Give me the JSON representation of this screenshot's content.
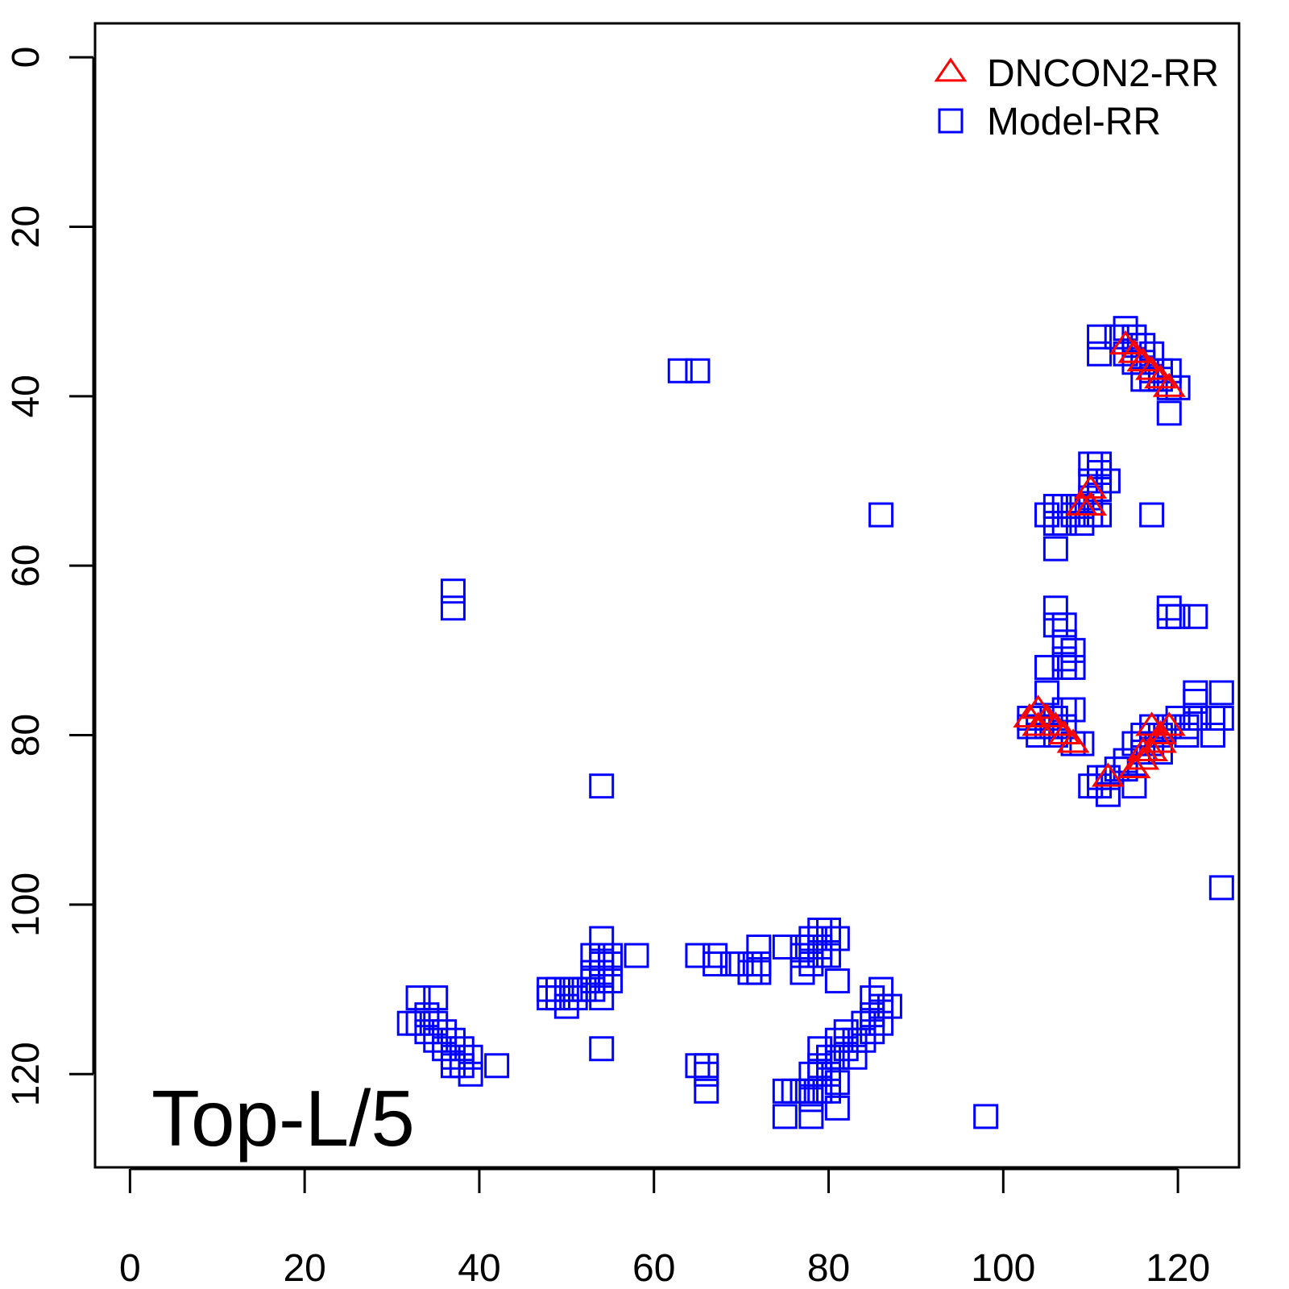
{
  "chart_data": {
    "type": "scatter",
    "title": "",
    "annotation": "Top-L/5",
    "xlabel": "",
    "ylabel": "",
    "xlim": [
      -4,
      127
    ],
    "ylim": [
      -4,
      131
    ],
    "y_reversed": true,
    "grid": false,
    "x_ticks": [
      0,
      20,
      40,
      60,
      80,
      100,
      120
    ],
    "y_ticks": [
      0,
      20,
      40,
      60,
      80,
      100,
      120
    ],
    "legend_position": "top-right",
    "series": [
      {
        "name": "DNCON2-RR",
        "marker": "triangle",
        "color": "#ff0000",
        "points": [
          [
            114,
            34
          ],
          [
            115,
            35
          ],
          [
            116,
            36
          ],
          [
            117,
            37
          ],
          [
            118,
            38
          ],
          [
            119,
            39
          ],
          [
            110,
            51
          ],
          [
            109,
            53
          ],
          [
            110,
            53
          ],
          [
            103,
            78
          ],
          [
            104,
            77
          ],
          [
            104,
            79
          ],
          [
            105,
            78
          ],
          [
            106,
            79
          ],
          [
            107,
            80
          ],
          [
            108,
            81
          ],
          [
            112,
            85
          ],
          [
            115,
            84
          ],
          [
            116,
            83
          ],
          [
            116,
            82
          ],
          [
            117,
            82
          ],
          [
            117,
            79
          ],
          [
            118,
            81
          ],
          [
            118,
            80
          ],
          [
            119,
            79
          ]
        ]
      },
      {
        "name": "Model-RR",
        "marker": "square",
        "color": "#0000ff",
        "points": [
          [
            114,
            32
          ],
          [
            113,
            33
          ],
          [
            115,
            33
          ],
          [
            111,
            33
          ],
          [
            111,
            35
          ],
          [
            114,
            35
          ],
          [
            115,
            34
          ],
          [
            116,
            34
          ],
          [
            116,
            36
          ],
          [
            117,
            35
          ],
          [
            117,
            37
          ],
          [
            115,
            36
          ],
          [
            116,
            38
          ],
          [
            117,
            38
          ],
          [
            118,
            37
          ],
          [
            118,
            38
          ],
          [
            119,
            37
          ],
          [
            119,
            39
          ],
          [
            120,
            39
          ],
          [
            119,
            42
          ],
          [
            63,
            37
          ],
          [
            65,
            37
          ],
          [
            110,
            48
          ],
          [
            111,
            48
          ],
          [
            112,
            50
          ],
          [
            110,
            50
          ],
          [
            111,
            49
          ],
          [
            111,
            51
          ],
          [
            110,
            52
          ],
          [
            109,
            53
          ],
          [
            110,
            54
          ],
          [
            111,
            54
          ],
          [
            109,
            55
          ],
          [
            108,
            53
          ],
          [
            107,
            53
          ],
          [
            106,
            53
          ],
          [
            105,
            54
          ],
          [
            106,
            55
          ],
          [
            107,
            55
          ],
          [
            108,
            54
          ],
          [
            106,
            58
          ],
          [
            117,
            54
          ],
          [
            86,
            54
          ],
          [
            37,
            63
          ],
          [
            37,
            65
          ],
          [
            106,
            65
          ],
          [
            106,
            67
          ],
          [
            107,
            67
          ],
          [
            107,
            69
          ],
          [
            107,
            71
          ],
          [
            107,
            72
          ],
          [
            108,
            72
          ],
          [
            108,
            70
          ],
          [
            105,
            72
          ],
          [
            108,
            77
          ],
          [
            107,
            77
          ],
          [
            105,
            75
          ],
          [
            119,
            65
          ],
          [
            119,
            66
          ],
          [
            120,
            66
          ],
          [
            122,
            66
          ],
          [
            103,
            79
          ],
          [
            103,
            78
          ],
          [
            104,
            80
          ],
          [
            104,
            78
          ],
          [
            105,
            79
          ],
          [
            106,
            78
          ],
          [
            106,
            80
          ],
          [
            107,
            79
          ],
          [
            108,
            81
          ],
          [
            109,
            81
          ],
          [
            110,
            86
          ],
          [
            111,
            85
          ],
          [
            111,
            86
          ],
          [
            112,
            87
          ],
          [
            112,
            85
          ],
          [
            113,
            84
          ],
          [
            114,
            83
          ],
          [
            114,
            84
          ],
          [
            115,
            86
          ],
          [
            115,
            81
          ],
          [
            116,
            82
          ],
          [
            116,
            80
          ],
          [
            117,
            81
          ],
          [
            117,
            79
          ],
          [
            118,
            80
          ],
          [
            118,
            82
          ],
          [
            119,
            79
          ],
          [
            120,
            78
          ],
          [
            121,
            79
          ],
          [
            121,
            80
          ],
          [
            122,
            76
          ],
          [
            122,
            78
          ],
          [
            122,
            75
          ],
          [
            124,
            78
          ],
          [
            124,
            80
          ],
          [
            125,
            75
          ],
          [
            125,
            78
          ],
          [
            54,
            86
          ],
          [
            125,
            98
          ],
          [
            33,
            111
          ],
          [
            35,
            111
          ],
          [
            32,
            114
          ],
          [
            33,
            114
          ],
          [
            34,
            115
          ],
          [
            34,
            113
          ],
          [
            35,
            114
          ],
          [
            35,
            116
          ],
          [
            36,
            115
          ],
          [
            36,
            117
          ],
          [
            37,
            116
          ],
          [
            37,
            118
          ],
          [
            38,
            117
          ],
          [
            38,
            119
          ],
          [
            39,
            118
          ],
          [
            39,
            120
          ],
          [
            37,
            119
          ],
          [
            42,
            119
          ],
          [
            48,
            110
          ],
          [
            48,
            111
          ],
          [
            49,
            110
          ],
          [
            49,
            111
          ],
          [
            50,
            110
          ],
          [
            50,
            112
          ],
          [
            51,
            110
          ],
          [
            51,
            111
          ],
          [
            52,
            110
          ],
          [
            53,
            109
          ],
          [
            53,
            106
          ],
          [
            53,
            108
          ],
          [
            53,
            110
          ],
          [
            54,
            104
          ],
          [
            54,
            106
          ],
          [
            54,
            107
          ],
          [
            54,
            108
          ],
          [
            54,
            109
          ],
          [
            54,
            111
          ],
          [
            55,
            106
          ],
          [
            55,
            107
          ],
          [
            55,
            109
          ],
          [
            58,
            106
          ],
          [
            54,
            117
          ],
          [
            65,
            106
          ],
          [
            67,
            106
          ],
          [
            67,
            107
          ],
          [
            69,
            107
          ],
          [
            70,
            107
          ],
          [
            71,
            107
          ],
          [
            71,
            108
          ],
          [
            72,
            105
          ],
          [
            72,
            107
          ],
          [
            72,
            108
          ],
          [
            75,
            105
          ],
          [
            77,
            105
          ],
          [
            77,
            106
          ],
          [
            77,
            108
          ],
          [
            78,
            104
          ],
          [
            78,
            106
          ],
          [
            78,
            107
          ],
          [
            79,
            103
          ],
          [
            79,
            105
          ],
          [
            79,
            106
          ],
          [
            80,
            103
          ],
          [
            80,
            104
          ],
          [
            80,
            106
          ],
          [
            81,
            104
          ],
          [
            81,
            109
          ],
          [
            66,
            119
          ],
          [
            65,
            119
          ],
          [
            66,
            120
          ],
          [
            66,
            122
          ],
          [
            75,
            122
          ],
          [
            76,
            122
          ],
          [
            77,
            122
          ],
          [
            75,
            125
          ],
          [
            78,
            120
          ],
          [
            78,
            122
          ],
          [
            78,
            123
          ],
          [
            78,
            125
          ],
          [
            79,
            117
          ],
          [
            79,
            119
          ],
          [
            79,
            120
          ],
          [
            79,
            122
          ],
          [
            80,
            118
          ],
          [
            80,
            120
          ],
          [
            80,
            122
          ],
          [
            81,
            116
          ],
          [
            81,
            118
          ],
          [
            81,
            121
          ],
          [
            81,
            124
          ],
          [
            82,
            115
          ],
          [
            82,
            117
          ],
          [
            83,
            116
          ],
          [
            83,
            118
          ],
          [
            84,
            114
          ],
          [
            84,
            116
          ],
          [
            85,
            113
          ],
          [
            85,
            115
          ],
          [
            85,
            111
          ],
          [
            86,
            110
          ],
          [
            86,
            112
          ],
          [
            86,
            114
          ],
          [
            87,
            112
          ],
          [
            98,
            125
          ]
        ]
      }
    ]
  }
}
